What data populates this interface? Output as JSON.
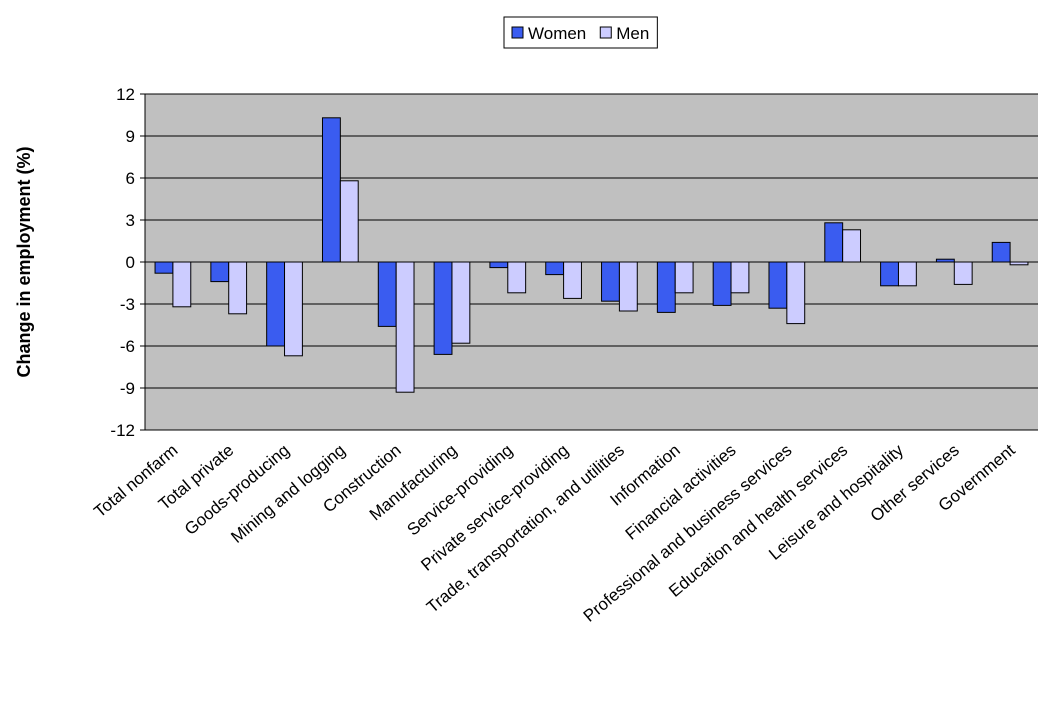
{
  "chart_data": {
    "type": "bar",
    "y_label": "Change in employment (%)",
    "categories": [
      "Total nonfarm",
      "Total private",
      "Goods-producing",
      "Mining and logging",
      "Construction",
      "Manufacturing",
      "Service-providing",
      "Private service-providing",
      "Trade, transportation, and utilities",
      "Information",
      "Financial activities",
      "Professional and business services",
      "Education and health services",
      "Leisure and hospitality",
      "Other services",
      "Government"
    ],
    "series": [
      {
        "name": "Women",
        "color": "#3a5cf0",
        "values": [
          -0.8,
          -1.4,
          -6.0,
          10.3,
          -4.6,
          -6.6,
          -0.4,
          -0.9,
          -2.8,
          -3.6,
          -3.1,
          -3.3,
          2.8,
          -1.7,
          0.2,
          1.4
        ]
      },
      {
        "name": "Men",
        "color": "#ccccff",
        "values": [
          -3.2,
          -3.7,
          -6.7,
          5.8,
          -9.3,
          -5.8,
          -2.2,
          -2.6,
          -3.5,
          -2.2,
          -2.2,
          -4.4,
          2.3,
          -1.7,
          -1.6,
          -0.2
        ]
      }
    ],
    "ylim": [
      -12,
      12
    ],
    "yticks": [
      -12,
      -9,
      -6,
      -3,
      0,
      3,
      6,
      9,
      12
    ],
    "grid": true,
    "plot_background": "#c0c0c0",
    "legend": "top"
  }
}
